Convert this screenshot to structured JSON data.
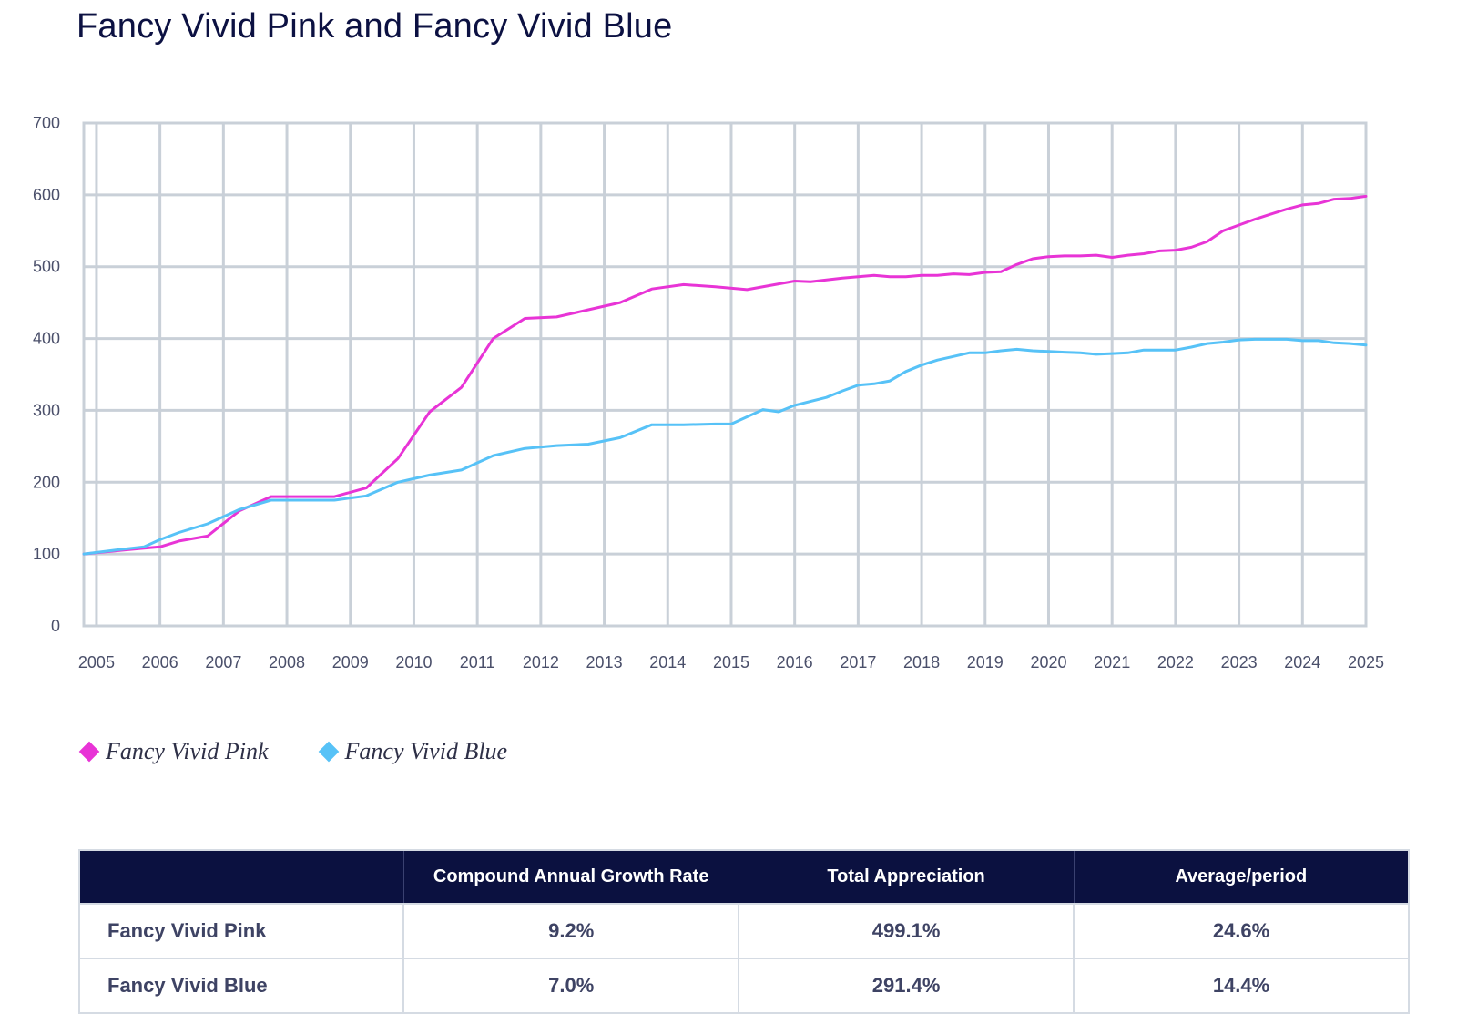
{
  "title": "Fancy Vivid Pink and Fancy Vivid Blue",
  "colors": {
    "pink": "#e834d6",
    "blue": "#57c2f7",
    "grid": "#c9d0d8",
    "header_bg": "#0b1140"
  },
  "chart_data": {
    "type": "line",
    "title": "Fancy Vivid Pink and Fancy Vivid Blue",
    "xlabel": "",
    "ylabel": "",
    "xlim": [
      2004.8,
      2025.0
    ],
    "ylim": [
      0,
      700
    ],
    "xticks": [
      "2005",
      "2006",
      "2007",
      "2008",
      "2009",
      "2010",
      "2011",
      "2012",
      "2013",
      "2014",
      "2015",
      "2016",
      "2017",
      "2018",
      "2019",
      "2020",
      "2021",
      "2022",
      "2023",
      "2024",
      "2025"
    ],
    "yticks": [
      "0",
      "100",
      "200",
      "300",
      "400",
      "500",
      "600",
      "700"
    ],
    "grid": true,
    "legend_position": "bottom-left",
    "series": [
      {
        "name": "Fancy Vivid Pink",
        "color": "#e834d6",
        "x": [
          2004.8,
          2005.25,
          2005.75,
          2006.0,
          2006.3,
          2006.75,
          2007.25,
          2007.75,
          2008.25,
          2008.75,
          2009.25,
          2009.75,
          2010.25,
          2010.75,
          2011.25,
          2011.75,
          2012.25,
          2012.75,
          2013.25,
          2013.75,
          2014.25,
          2014.75,
          2015.25,
          2015.75,
          2016.0,
          2016.25,
          2016.75,
          2017.0,
          2017.25,
          2017.5,
          2017.75,
          2018.0,
          2018.25,
          2018.5,
          2018.75,
          2019.0,
          2019.25,
          2019.5,
          2019.75,
          2020.0,
          2020.25,
          2020.5,
          2020.75,
          2021.0,
          2021.25,
          2021.5,
          2021.75,
          2022.0,
          2022.25,
          2022.5,
          2022.75,
          2023.0,
          2023.25,
          2023.5,
          2023.75,
          2024.0,
          2024.25,
          2024.5,
          2024.75,
          2025.0
        ],
        "y": [
          100,
          104,
          108,
          110,
          118,
          125,
          160,
          180,
          180,
          180,
          192,
          233,
          298,
          332,
          400,
          428,
          430,
          440,
          450,
          469,
          475,
          472,
          468,
          476,
          480,
          479,
          484,
          486,
          488,
          486,
          486,
          488,
          488,
          490,
          489,
          492,
          493,
          503,
          511,
          514,
          515,
          515,
          516,
          513,
          516,
          518,
          522,
          523,
          527,
          535,
          550,
          558,
          566,
          573,
          580,
          586,
          588,
          594,
          595,
          598
        ]
      },
      {
        "name": "Fancy Vivid Blue",
        "color": "#57c2f7",
        "x": [
          2004.8,
          2005.25,
          2005.75,
          2006.0,
          2006.3,
          2006.75,
          2007.25,
          2007.75,
          2008.25,
          2008.75,
          2009.25,
          2009.75,
          2010.25,
          2010.75,
          2011.25,
          2011.75,
          2012.25,
          2012.75,
          2013.25,
          2013.75,
          2014.25,
          2014.75,
          2015.0,
          2015.5,
          2015.75,
          2016.0,
          2016.5,
          2016.75,
          2017.0,
          2017.25,
          2017.5,
          2017.75,
          2018.0,
          2018.25,
          2018.5,
          2018.75,
          2019.0,
          2019.25,
          2019.5,
          2019.75,
          2020.0,
          2020.25,
          2020.5,
          2020.75,
          2021.0,
          2021.25,
          2021.5,
          2021.75,
          2022.0,
          2022.25,
          2022.5,
          2022.75,
          2023.0,
          2023.25,
          2023.5,
          2023.75,
          2024.0,
          2024.25,
          2024.5,
          2024.75,
          2025.0
        ],
        "y": [
          100,
          105,
          110,
          120,
          130,
          142,
          162,
          175,
          175,
          175,
          181,
          200,
          210,
          217,
          237,
          247,
          251,
          253,
          262,
          280,
          280,
          281,
          281,
          301,
          298,
          307,
          318,
          327,
          335,
          337,
          341,
          354,
          363,
          370,
          375,
          380,
          380,
          383,
          385,
          383,
          382,
          381,
          380,
          378,
          379,
          380,
          384,
          384,
          384,
          388,
          393,
          395,
          398,
          399,
          399,
          399,
          397,
          397,
          394,
          393,
          391
        ]
      }
    ]
  },
  "legend": [
    {
      "label": "Fancy Vivid Pink",
      "color": "#e834d6"
    },
    {
      "label": "Fancy Vivid Blue",
      "color": "#57c2f7"
    }
  ],
  "table": {
    "headers": [
      "",
      "Compound Annual Growth Rate",
      "Total Appreciation",
      "Average/period"
    ],
    "rows": [
      [
        "Fancy Vivid Pink",
        "9.2%",
        "499.1%",
        "24.6%"
      ],
      [
        "Fancy Vivid Blue",
        "7.0%",
        "291.4%",
        "14.4%"
      ]
    ]
  }
}
